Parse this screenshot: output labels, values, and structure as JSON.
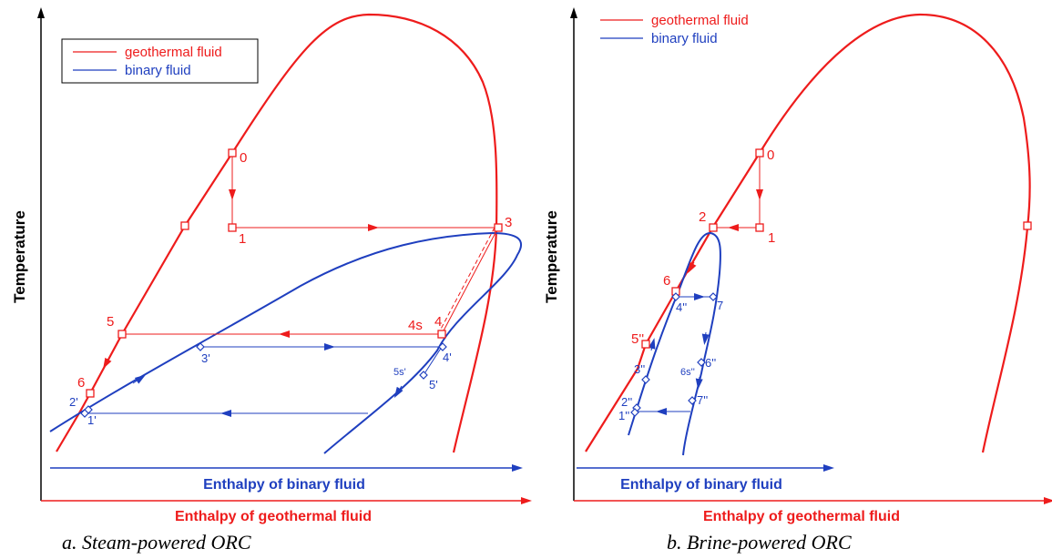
{
  "panels": [
    {
      "caption": "a. Steam-powered ORC",
      "y_axis_label": "Temperature",
      "x_axis_binary": "Enthalpy of binary fluid",
      "x_axis_geothermal": "Enthalpy of geothermal fluid",
      "legend": [
        "geothermal fluid",
        "binary fluid"
      ],
      "points": [
        "0",
        "1",
        "3",
        "4s",
        "4",
        "5",
        "6",
        "2'",
        "1'",
        "3'",
        "4'",
        "5s'",
        "5'"
      ]
    },
    {
      "caption": "b. Brine-powered ORC",
      "y_axis_label": "Temperature",
      "x_axis_binary": "Enthalpy of binary fluid",
      "x_axis_geothermal": "Enthalpy of geothermal fluid",
      "legend": [
        "geothermal fluid",
        "binary fluid"
      ],
      "points": [
        "0",
        "1",
        "2",
        "6",
        "4''",
        "5''",
        "7",
        "3''",
        "6s''",
        "6''",
        "2''",
        "1''",
        "7''"
      ]
    }
  ],
  "colors": {
    "geothermal": "#ee1c1c",
    "binary": "#1f3fbf",
    "axis": "#000000"
  }
}
